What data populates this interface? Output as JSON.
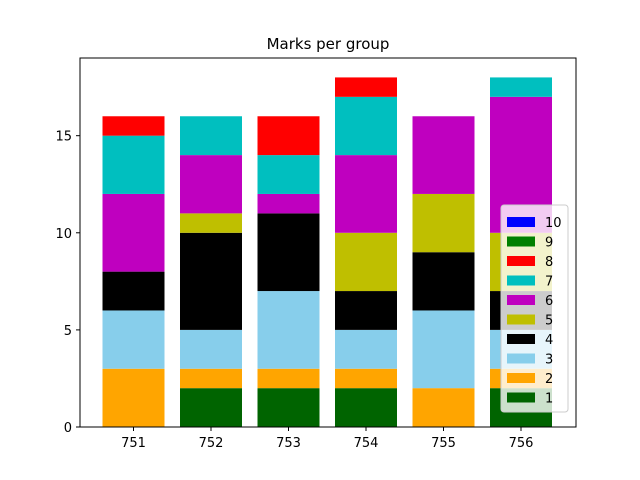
{
  "chart_data": {
    "type": "bar",
    "stacked": true,
    "title": "Marks per group",
    "xlabel": "",
    "ylabel": "",
    "categories": [
      "751",
      "752",
      "753",
      "754",
      "755",
      "756"
    ],
    "ylim": [
      0,
      19
    ],
    "yticks": [
      0,
      5,
      10,
      15
    ],
    "grid": false,
    "legend_position": "right",
    "series": [
      {
        "name": "10",
        "color": "#0000ff",
        "values": [
          0,
          0,
          0,
          0,
          0,
          0
        ]
      },
      {
        "name": "9",
        "color": "#008000",
        "values": [
          0,
          0,
          0,
          0,
          0,
          0
        ]
      },
      {
        "name": "8",
        "color": "#ff0000",
        "values": [
          1,
          0,
          2,
          1,
          0,
          0
        ]
      },
      {
        "name": "7",
        "color": "#00bfbf",
        "values": [
          3,
          2,
          2,
          3,
          0,
          1
        ]
      },
      {
        "name": "6",
        "color": "#bf00bf",
        "values": [
          4,
          3,
          1,
          4,
          4,
          7
        ]
      },
      {
        "name": "5",
        "color": "#bfbf00",
        "values": [
          0,
          1,
          0,
          3,
          3,
          3
        ]
      },
      {
        "name": "4",
        "color": "#000000",
        "values": [
          2,
          5,
          4,
          2,
          3,
          2
        ]
      },
      {
        "name": "3",
        "color": "#87ceeb",
        "values": [
          3,
          2,
          4,
          2,
          4,
          2
        ]
      },
      {
        "name": "2",
        "color": "#ffa500",
        "values": [
          3,
          1,
          1,
          1,
          2,
          1
        ]
      },
      {
        "name": "1",
        "color": "#006400",
        "values": [
          0,
          2,
          2,
          2,
          0,
          2
        ]
      }
    ]
  }
}
